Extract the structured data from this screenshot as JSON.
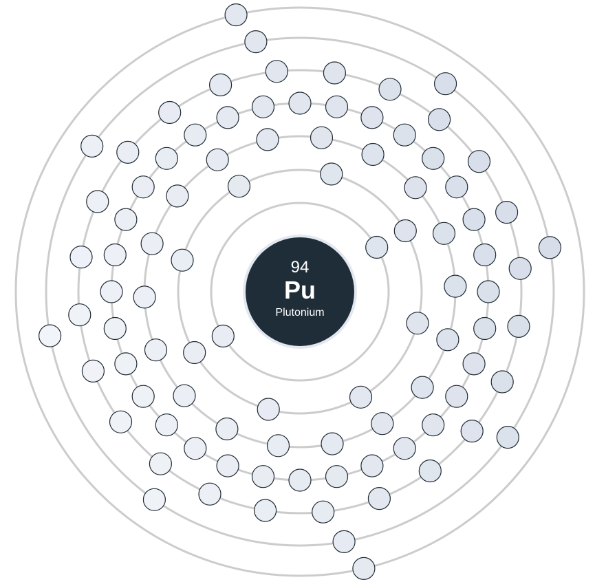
{
  "element": {
    "atomic_number": "94",
    "symbol": "Pu",
    "name": "Plutonium"
  },
  "electron_configuration": {
    "shells": [
      2,
      8,
      18,
      32,
      24,
      8,
      2
    ]
  },
  "colors": {
    "background": "#ffffff",
    "nucleus_fill": "#1f2d38",
    "nucleus_halo": "#e3e8f0",
    "shell_stroke": "#cccccc",
    "electron_stroke": "#1f2a33",
    "electron_inner_fill": "#d4dbe7",
    "electron_outer_fill": "#f4f6fa"
  }
}
